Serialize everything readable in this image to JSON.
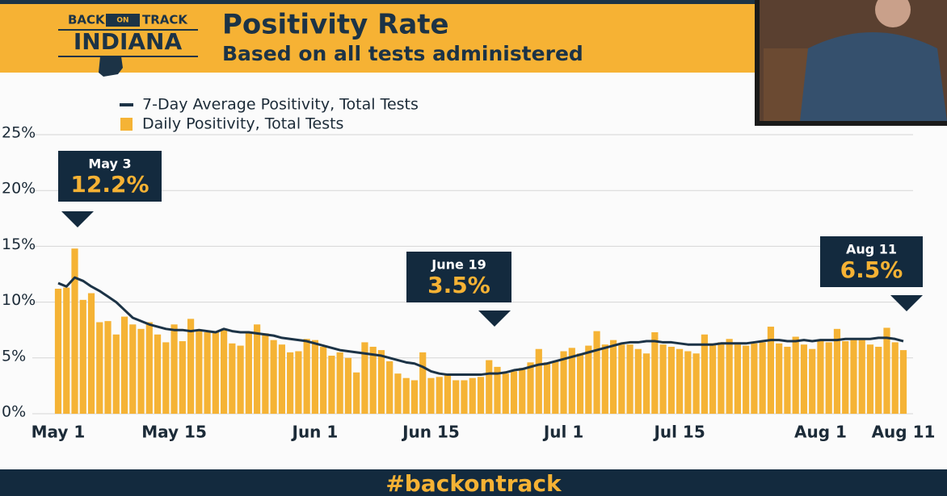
{
  "header": {
    "title": "Positivity Rate",
    "subtitle": "Based on all tests administered"
  },
  "logo": {
    "top_left": "BACK",
    "top_middle": "ON",
    "top_right": "TRACK",
    "name": "INDIANA"
  },
  "footer": {
    "hashtag": "#backontrack"
  },
  "chart_data": {
    "type": "bar",
    "categories": [
      "May 1",
      null,
      null,
      null,
      null,
      null,
      null,
      null,
      null,
      null,
      null,
      null,
      null,
      null,
      "May 15",
      null,
      null,
      null,
      null,
      null,
      null,
      null,
      null,
      null,
      null,
      null,
      null,
      null,
      null,
      null,
      null,
      "Jun 1",
      null,
      null,
      null,
      null,
      null,
      null,
      null,
      null,
      null,
      null,
      null,
      null,
      null,
      "Jun 15",
      null,
      null,
      null,
      null,
      null,
      null,
      null,
      null,
      null,
      null,
      null,
      null,
      null,
      null,
      null,
      "Jul 1",
      null,
      null,
      null,
      null,
      null,
      null,
      null,
      null,
      null,
      null,
      null,
      null,
      null,
      "Jul 15",
      null,
      null,
      null,
      null,
      null,
      null,
      null,
      null,
      null,
      null,
      null,
      null,
      null,
      null,
      null,
      null,
      "Aug 1",
      null,
      null,
      null,
      null,
      null,
      null,
      null,
      null,
      null,
      "Aug 11"
    ],
    "series": [
      {
        "name": "7-Day Average Positivity, Total Tests",
        "type": "line",
        "color": "#1c3346",
        "values": [
          11.7,
          11.4,
          12.2,
          11.9,
          11.4,
          11.0,
          10.5,
          10.0,
          9.3,
          8.6,
          8.3,
          8.0,
          7.8,
          7.6,
          7.5,
          7.5,
          7.4,
          7.5,
          7.4,
          7.3,
          7.6,
          7.4,
          7.3,
          7.3,
          7.2,
          7.1,
          7.0,
          6.8,
          6.7,
          6.6,
          6.5,
          6.3,
          6.1,
          5.9,
          5.7,
          5.6,
          5.5,
          5.4,
          5.3,
          5.2,
          5.0,
          4.8,
          4.6,
          4.5,
          4.2,
          3.8,
          3.6,
          3.5,
          3.5,
          3.5,
          3.5,
          3.5,
          3.6,
          3.6,
          3.7,
          3.9,
          4.0,
          4.2,
          4.4,
          4.5,
          4.7,
          4.9,
          5.1,
          5.3,
          5.5,
          5.7,
          5.9,
          6.1,
          6.3,
          6.4,
          6.4,
          6.5,
          6.5,
          6.4,
          6.4,
          6.3,
          6.2,
          6.2,
          6.2,
          6.2,
          6.3,
          6.3,
          6.3,
          6.3,
          6.4,
          6.5,
          6.6,
          6.6,
          6.5,
          6.5,
          6.6,
          6.5,
          6.6,
          6.6,
          6.6,
          6.7,
          6.7,
          6.7,
          6.7,
          6.8,
          6.8,
          6.7,
          6.5
        ]
      },
      {
        "name": "Daily Positivity, Total Tests",
        "type": "bar",
        "color": "#f5b335",
        "values": [
          11.2,
          11.3,
          14.8,
          10.2,
          10.8,
          8.2,
          8.3,
          7.1,
          8.7,
          8.0,
          7.6,
          8.2,
          7.1,
          6.4,
          8.0,
          6.5,
          8.5,
          7.5,
          7.3,
          7.4,
          7.6,
          6.3,
          6.1,
          7.3,
          8.0,
          7.2,
          6.6,
          6.2,
          5.5,
          5.6,
          6.7,
          6.6,
          6.0,
          5.2,
          5.5,
          5.0,
          3.7,
          6.4,
          6.0,
          5.7,
          4.7,
          3.6,
          3.2,
          3.0,
          5.5,
          3.2,
          3.3,
          3.6,
          3.0,
          3.0,
          3.2,
          3.3,
          4.8,
          4.2,
          3.6,
          3.8,
          4.1,
          4.6,
          5.8,
          4.6,
          4.7,
          5.6,
          5.9,
          5.4,
          6.1,
          7.4,
          6.2,
          6.6,
          6.2,
          6.2,
          5.8,
          5.4,
          7.3,
          6.2,
          6.0,
          5.8,
          5.6,
          5.4,
          7.1,
          6.3,
          6.4,
          6.7,
          6.2,
          6.1,
          6.3,
          6.4,
          7.8,
          6.3,
          6.0,
          6.9,
          6.2,
          5.8,
          6.6,
          6.4,
          7.6,
          6.5,
          6.6,
          6.6,
          6.2,
          6.0,
          7.7,
          6.4,
          5.7
        ]
      }
    ],
    "ylim": [
      0,
      25
    ],
    "yticks": [
      {
        "value": 0,
        "label": "0%"
      },
      {
        "value": 5,
        "label": "5%"
      },
      {
        "value": 10,
        "label": "10%"
      },
      {
        "value": 15,
        "label": "15%"
      },
      {
        "value": 20,
        "label": "20%"
      },
      {
        "value": 25,
        "label": "25%"
      }
    ],
    "grid": true,
    "legend": "top-left",
    "annotations": [
      {
        "date": "May 3",
        "text": "12.2%"
      },
      {
        "date": "June 19",
        "text": "3.5%"
      },
      {
        "date": "Aug 11",
        "text": "6.5%"
      }
    ]
  }
}
